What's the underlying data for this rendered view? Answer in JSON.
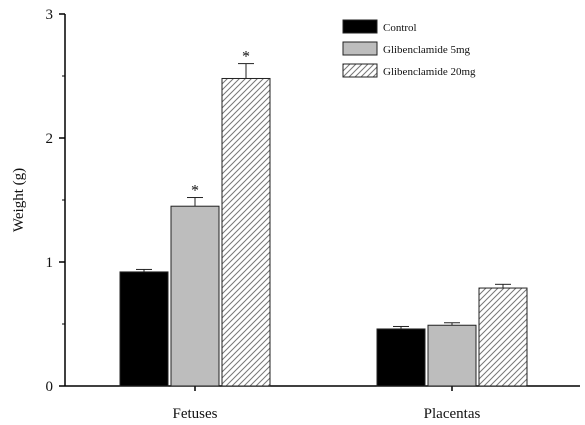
{
  "chart_data": {
    "type": "bar",
    "title": "",
    "xlabel": "",
    "ylabel": "Weight (g)",
    "ylim": [
      0,
      3
    ],
    "yticks": [
      0,
      1,
      2,
      3
    ],
    "grid": false,
    "legend_position": "top-right",
    "categories": [
      "Fetuses",
      "Placentas"
    ],
    "series": [
      {
        "name": "Control",
        "fill": "#000000",
        "pattern": "solid",
        "values": [
          0.92,
          0.46
        ],
        "errors": [
          0.02,
          0.02
        ],
        "significance": [
          "",
          ""
        ]
      },
      {
        "name": "Glibenclamide 5mg",
        "fill": "#bdbdbd",
        "pattern": "solid",
        "values": [
          1.45,
          0.49
        ],
        "errors": [
          0.07,
          0.02
        ],
        "significance": [
          "*",
          ""
        ]
      },
      {
        "name": "Glibenclamide 20mg",
        "fill": "#ffffff",
        "pattern": "hatch",
        "values": [
          2.48,
          0.79
        ],
        "errors": [
          0.12,
          0.03
        ],
        "significance": [
          "*",
          ""
        ]
      }
    ]
  }
}
